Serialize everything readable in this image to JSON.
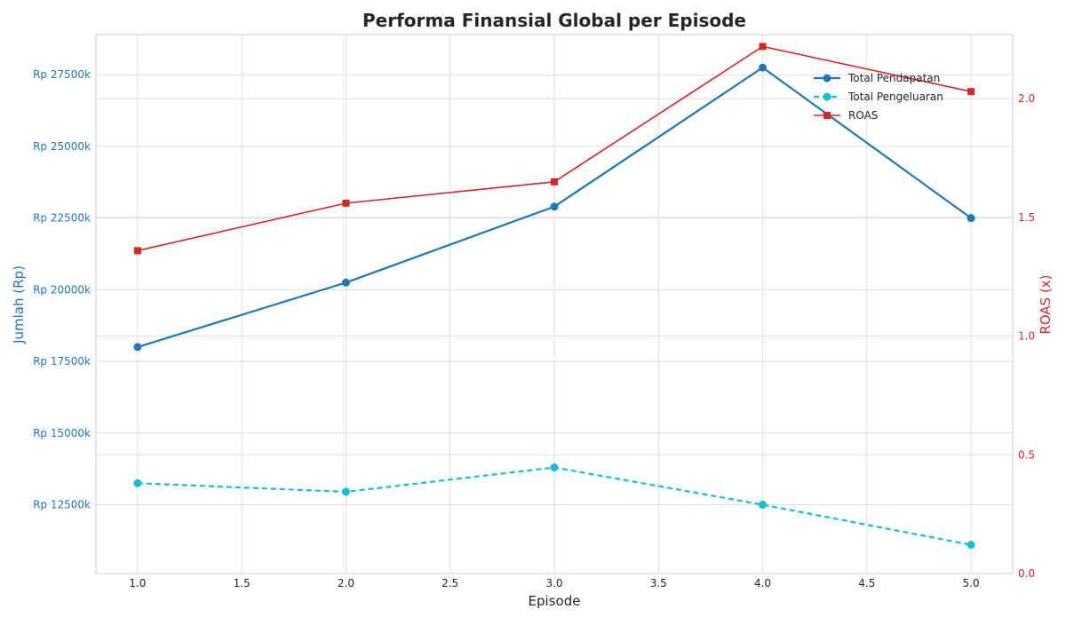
{
  "chart_data": {
    "type": "line",
    "title": "Performa Finansial Global per Episode",
    "xlabel": "Episode",
    "ylabel_left": "Jumlah (Rp)",
    "ylabel_right": "ROAS (x)",
    "x": [
      1,
      2,
      3,
      4,
      5
    ],
    "xlim": [
      0.8,
      5.2
    ],
    "xticks": [
      1.0,
      1.5,
      2.0,
      2.5,
      3.0,
      3.5,
      4.0,
      4.5,
      5.0
    ],
    "xtick_labels": [
      "1.0",
      "1.5",
      "2.0",
      "2.5",
      "3.0",
      "3.5",
      "4.0",
      "4.5",
      "5.0"
    ],
    "ylim_left": [
      10100,
      28900
    ],
    "yticks_left": [
      12500,
      15000,
      17500,
      20000,
      22500,
      25000,
      27500
    ],
    "ytick_labels_left": [
      "Rp 12500k",
      "Rp 15000k",
      "Rp 17500k",
      "Rp 20000k",
      "Rp 22500k",
      "Rp 25000k",
      "Rp 27500k"
    ],
    "ylim_right": [
      0,
      2.27
    ],
    "yticks_right": [
      0.0,
      0.5,
      1.0,
      1.5,
      2.0
    ],
    "ytick_labels_right": [
      "0.0",
      "0.5",
      "1.0",
      "1.5",
      "2.0"
    ],
    "grid": true,
    "legend_position": "top-right",
    "series": [
      {
        "name": "Total Pendapatan",
        "axis": "left",
        "values": [
          18000,
          20250,
          22900,
          27750,
          22500
        ],
        "color": "#1f77b4",
        "line_style": "solid",
        "marker": "circle"
      },
      {
        "name": "Total Pengeluaran",
        "axis": "left",
        "values": [
          13250,
          12950,
          13800,
          12500,
          11100
        ],
        "color": "#17becf",
        "line_style": "dashed",
        "marker": "circle"
      },
      {
        "name": "ROAS",
        "axis": "right",
        "values": [
          1.36,
          1.56,
          1.65,
          2.22,
          2.03
        ],
        "color": "#d62728",
        "line_style": "solid",
        "marker": "square"
      }
    ]
  }
}
